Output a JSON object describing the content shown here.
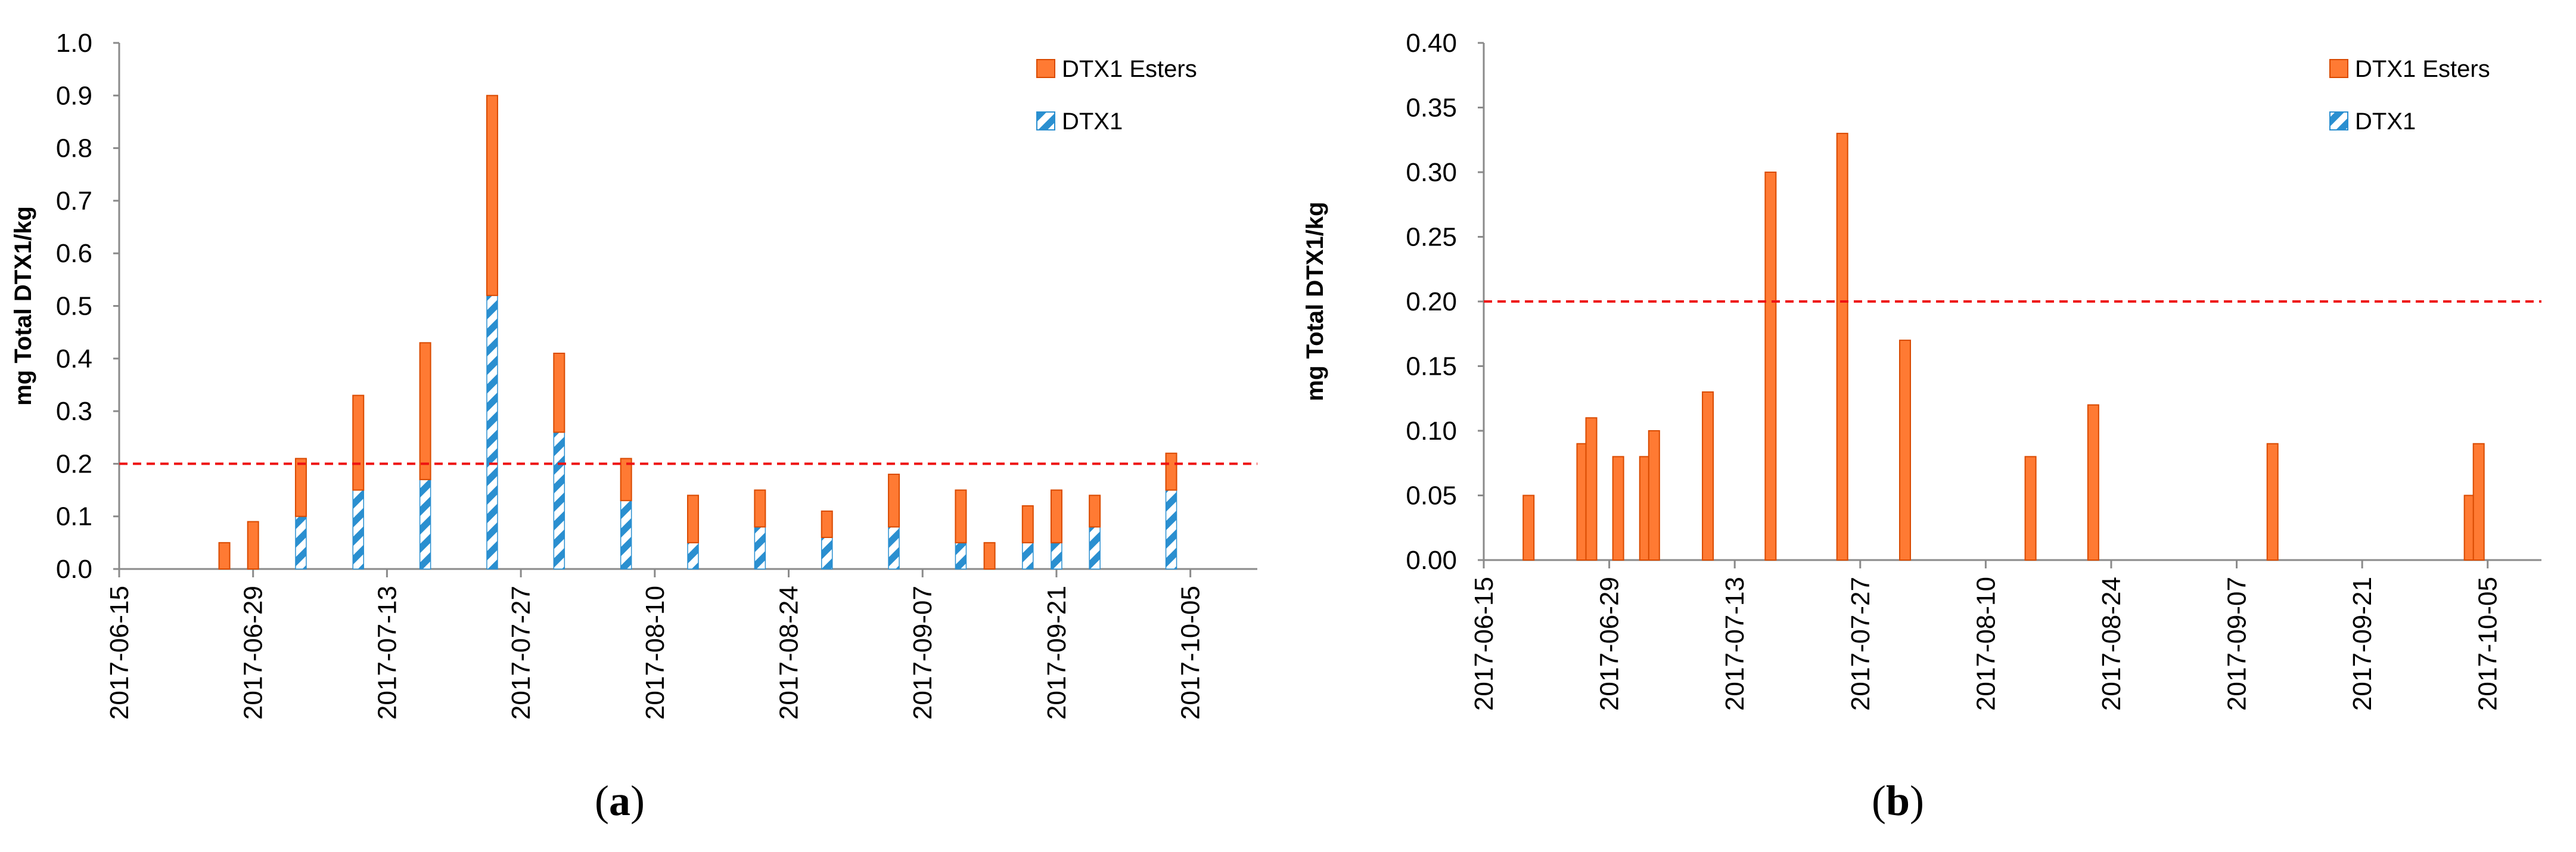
{
  "colors": {
    "esters": "#ff7a33",
    "esters_edge": "#d94a00",
    "dtx1_stripe": "#2a8fd0",
    "dtx1_bg": "#ffffff",
    "threshold": "#ee1111",
    "axis": "#8a8a8a"
  },
  "chart_data": [
    {
      "type": "bar",
      "stacked": true,
      "panel_label": "a",
      "caption": {
        "open": "(",
        "letter": "a",
        "close": ")"
      },
      "ylabel": "mg Total DTX1/kg",
      "ylim": [
        0,
        1.0
      ],
      "yticks": [
        "0.0",
        "0.1",
        "0.2",
        "0.3",
        "0.4",
        "0.5",
        "0.6",
        "0.7",
        "0.8",
        "0.9",
        "1.0"
      ],
      "ytick_values": [
        0,
        0.1,
        0.2,
        0.3,
        0.4,
        0.5,
        0.6,
        0.7,
        0.8,
        0.9,
        1.0
      ],
      "xlim": [
        "2017-06-15",
        "2017-10-12"
      ],
      "xticks": [
        "2017-06-15",
        "2017-06-29",
        "2017-07-13",
        "2017-07-27",
        "2017-08-10",
        "2017-08-24",
        "2017-09-07",
        "2017-09-21",
        "2017-10-05"
      ],
      "threshold": 0.2,
      "legend": [
        {
          "name": "DTX1 Esters",
          "style": "solid"
        },
        {
          "name": "DTX1",
          "style": "hatched"
        }
      ],
      "data": [
        {
          "date": "2017-06-26",
          "dtx1": 0,
          "esters": 0.05
        },
        {
          "date": "2017-06-29",
          "dtx1": 0,
          "esters": 0.09
        },
        {
          "date": "2017-07-04",
          "dtx1": 0.1,
          "esters": 0.11
        },
        {
          "date": "2017-07-10",
          "dtx1": 0.15,
          "esters": 0.18
        },
        {
          "date": "2017-07-17",
          "dtx1": 0.17,
          "esters": 0.26
        },
        {
          "date": "2017-07-24",
          "dtx1": 0.52,
          "esters": 0.38
        },
        {
          "date": "2017-07-31",
          "dtx1": 0.26,
          "esters": 0.15
        },
        {
          "date": "2017-08-07",
          "dtx1": 0.13,
          "esters": 0.08
        },
        {
          "date": "2017-08-14",
          "dtx1": 0.05,
          "esters": 0.09
        },
        {
          "date": "2017-08-21",
          "dtx1": 0.08,
          "esters": 0.07
        },
        {
          "date": "2017-08-28",
          "dtx1": 0.06,
          "esters": 0.05
        },
        {
          "date": "2017-09-04",
          "dtx1": 0.08,
          "esters": 0.1
        },
        {
          "date": "2017-09-11",
          "dtx1": 0.05,
          "esters": 0.1
        },
        {
          "date": "2017-09-14",
          "dtx1": 0,
          "esters": 0.05
        },
        {
          "date": "2017-09-18",
          "dtx1": 0.05,
          "esters": 0.07
        },
        {
          "date": "2017-09-21",
          "dtx1": 0.05,
          "esters": 0.1
        },
        {
          "date": "2017-09-25",
          "dtx1": 0.08,
          "esters": 0.06
        },
        {
          "date": "2017-10-03",
          "dtx1": 0.15,
          "esters": 0.07
        }
      ]
    },
    {
      "type": "bar",
      "stacked": true,
      "panel_label": "b",
      "caption": {
        "open": "(",
        "letter": "b",
        "close": ")"
      },
      "ylabel": "mg Total DTX1/kg",
      "ylim": [
        0,
        0.4
      ],
      "yticks": [
        "0.00",
        "0.05",
        "0.10",
        "0.15",
        "0.20",
        "0.25",
        "0.30",
        "0.35",
        "0.40"
      ],
      "ytick_values": [
        0,
        0.05,
        0.1,
        0.15,
        0.2,
        0.25,
        0.3,
        0.35,
        0.4
      ],
      "xlim": [
        "2017-06-15",
        "2017-10-11"
      ],
      "xticks": [
        "2017-06-15",
        "2017-06-29",
        "2017-07-13",
        "2017-07-27",
        "2017-08-10",
        "2017-08-24",
        "2017-09-07",
        "2017-09-21",
        "2017-10-05"
      ],
      "threshold": 0.2,
      "legend": [
        {
          "name": "DTX1 Esters",
          "style": "solid"
        },
        {
          "name": "DTX1",
          "style": "hatched"
        }
      ],
      "data": [
        {
          "date": "2017-06-20",
          "dtx1": 0,
          "esters": 0.05
        },
        {
          "date": "2017-06-26",
          "dtx1": 0,
          "esters": 0.09
        },
        {
          "date": "2017-06-27",
          "dtx1": 0,
          "esters": 0.11
        },
        {
          "date": "2017-06-30",
          "dtx1": 0,
          "esters": 0.08
        },
        {
          "date": "2017-07-03",
          "dtx1": 0,
          "esters": 0.08
        },
        {
          "date": "2017-07-04",
          "dtx1": 0,
          "esters": 0.1
        },
        {
          "date": "2017-07-10",
          "dtx1": 0,
          "esters": 0.13
        },
        {
          "date": "2017-07-17",
          "dtx1": 0,
          "esters": 0.3
        },
        {
          "date": "2017-07-25",
          "dtx1": 0,
          "esters": 0.33
        },
        {
          "date": "2017-08-01",
          "dtx1": 0,
          "esters": 0.17
        },
        {
          "date": "2017-08-15",
          "dtx1": 0,
          "esters": 0.08
        },
        {
          "date": "2017-08-22",
          "dtx1": 0,
          "esters": 0.12
        },
        {
          "date": "2017-09-11",
          "dtx1": 0,
          "esters": 0.09
        },
        {
          "date": "2017-10-03",
          "dtx1": 0,
          "esters": 0.05
        },
        {
          "date": "2017-10-04",
          "dtx1": 0,
          "esters": 0.09
        }
      ]
    }
  ]
}
